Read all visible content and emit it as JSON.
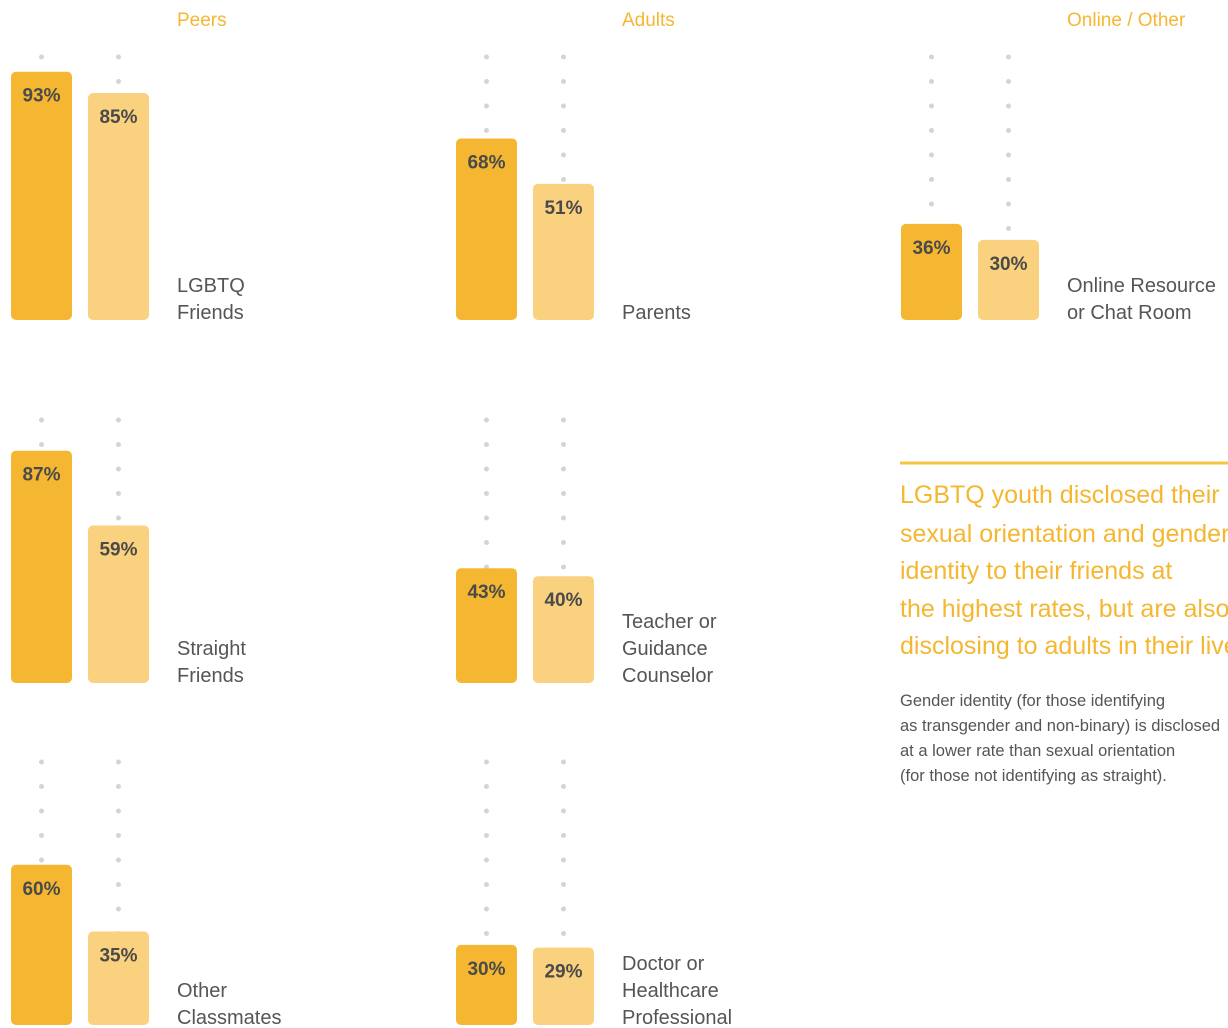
{
  "headings": [
    "Peers",
    "Adults",
    "Online / Other"
  ],
  "chart_data": [
    {
      "type": "bar",
      "label": [
        "LGBTQ",
        "Friends"
      ],
      "values": [
        93,
        85
      ],
      "value_labels": [
        "93%",
        "85%"
      ],
      "colors": [
        "#f5b731",
        "#fad17e"
      ],
      "ylim": [
        0,
        100
      ]
    },
    {
      "type": "bar",
      "label": [
        "Straight",
        "Friends"
      ],
      "values": [
        87,
        59
      ],
      "value_labels": [
        "87%",
        "59%"
      ],
      "colors": [
        "#f5b731",
        "#fad17e"
      ],
      "ylim": [
        0,
        100
      ]
    },
    {
      "type": "bar",
      "label": [
        "Other",
        "Classmates"
      ],
      "values": [
        60,
        35
      ],
      "value_labels": [
        "60%",
        "35%"
      ],
      "colors": [
        "#f5b731",
        "#fad17e"
      ],
      "ylim": [
        0,
        100
      ]
    },
    {
      "type": "bar",
      "label": [
        "Parents"
      ],
      "values": [
        68,
        51
      ],
      "value_labels": [
        "68%",
        "51%"
      ],
      "colors": [
        "#f5b731",
        "#fad17e"
      ],
      "ylim": [
        0,
        100
      ]
    },
    {
      "type": "bar",
      "label": [
        "Teacher or",
        "Guidance",
        "Counselor"
      ],
      "values": [
        43,
        40
      ],
      "value_labels": [
        "43%",
        "40%"
      ],
      "colors": [
        "#f5b731",
        "#fad17e"
      ],
      "ylim": [
        0,
        100
      ]
    },
    {
      "type": "bar",
      "label": [
        "Doctor or",
        "Healthcare",
        "Professional"
      ],
      "values": [
        30,
        29
      ],
      "value_labels": [
        "30%",
        "29%"
      ],
      "colors": [
        "#f5b731",
        "#fad17e"
      ],
      "ylim": [
        0,
        100
      ]
    },
    {
      "type": "bar",
      "label": [
        "Online Resource",
        "or Chat Room"
      ],
      "values": [
        36,
        30
      ],
      "value_labels": [
        "36%",
        "30%"
      ],
      "colors": [
        "#f5b731",
        "#fad17e"
      ],
      "ylim": [
        0,
        100
      ]
    }
  ],
  "callout": {
    "headline": [
      "LGBTQ youth disclosed their",
      "sexual orientation and gender",
      "identity to their friends at",
      "the highest rates, but are also",
      "disclosing to adults in their lives."
    ],
    "body": [
      "Gender identity (for those identifying",
      "as transgender and non-binary) is disclosed",
      "at a lower rate than sexual orientation",
      "(for those not identifying as straight)."
    ]
  }
}
